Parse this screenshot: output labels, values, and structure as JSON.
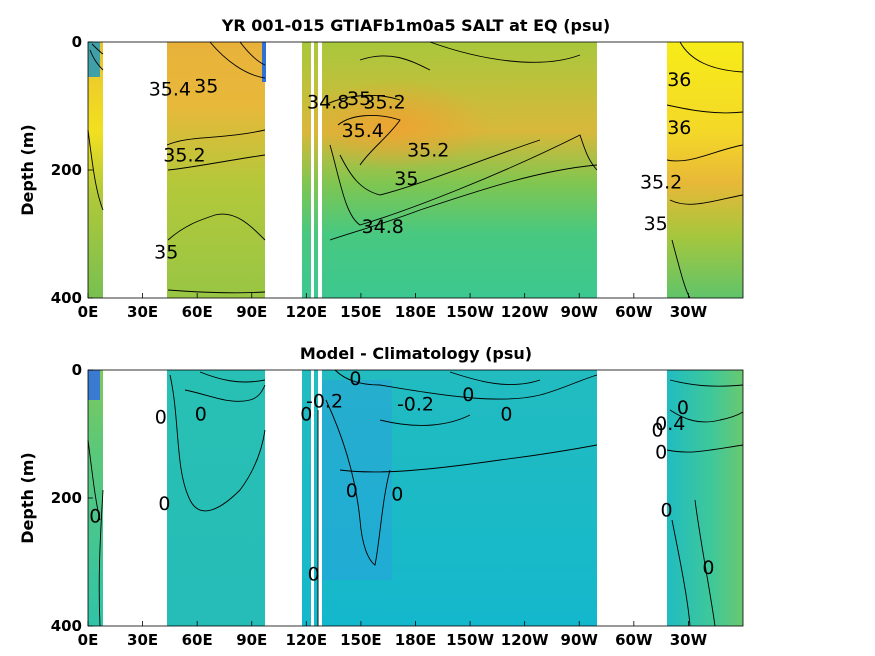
{
  "chart_data": [
    {
      "type": "heatmap",
      "title": "YR 001-015 GTIAFb1m0a5 SALT at EQ (psu)",
      "xlabel": "",
      "ylabel": "Depth (m)",
      "xticks": [
        "0E",
        "30E",
        "60E",
        "90E",
        "120E",
        "150E",
        "180E",
        "150W",
        "120W",
        "90W",
        "60W",
        "30W"
      ],
      "xtick_lon": [
        0,
        30,
        60,
        90,
        120,
        150,
        180,
        210,
        240,
        270,
        300,
        330
      ],
      "xlim": [
        0,
        360
      ],
      "yticks": [
        "0",
        "200",
        "400"
      ],
      "ytick_vals": [
        0,
        200,
        400
      ],
      "ylim": [
        0,
        400
      ],
      "y_reversed": true,
      "land_gaps_lon": [
        [
          7,
          42
        ],
        [
          97,
          118
        ],
        [
          122,
          124
        ],
        [
          125,
          127
        ],
        [
          273,
          303
        ]
      ],
      "contour_labels": [
        {
          "text": "35.4",
          "lon": 45,
          "depth": 75
        },
        {
          "text": "35",
          "lon": 65,
          "depth": 70
        },
        {
          "text": "35.2",
          "lon": 53,
          "depth": 178
        },
        {
          "text": "35",
          "lon": 43,
          "depth": 330
        },
        {
          "text": "34.8",
          "lon": 132,
          "depth": 95
        },
        {
          "text": "35",
          "lon": 149,
          "depth": 90
        },
        {
          "text": "35.2",
          "lon": 163,
          "depth": 95
        },
        {
          "text": "35.4",
          "lon": 151,
          "depth": 140
        },
        {
          "text": "35.2",
          "lon": 187,
          "depth": 170
        },
        {
          "text": "35",
          "lon": 175,
          "depth": 215
        },
        {
          "text": "34.8",
          "lon": 162,
          "depth": 290
        },
        {
          "text": "36",
          "lon": 325,
          "depth": 60
        },
        {
          "text": "36",
          "lon": 325,
          "depth": 135
        },
        {
          "text": "35.2",
          "lon": 315,
          "depth": 220
        },
        {
          "text": "35",
          "lon": 312,
          "depth": 285
        }
      ]
    },
    {
      "type": "heatmap",
      "title": "Model - Climatology (psu)",
      "xlabel": "",
      "ylabel": "Depth (m)",
      "xticks": [
        "0E",
        "30E",
        "60E",
        "90E",
        "120E",
        "150E",
        "180E",
        "150W",
        "120W",
        "90W",
        "60W",
        "30W"
      ],
      "xtick_lon": [
        0,
        30,
        60,
        90,
        120,
        150,
        180,
        210,
        240,
        270,
        300,
        330
      ],
      "xlim": [
        0,
        360
      ],
      "yticks": [
        "0",
        "200",
        "400"
      ],
      "ytick_vals": [
        0,
        200,
        400
      ],
      "ylim": [
        0,
        400
      ],
      "y_reversed": true,
      "land_gaps_lon": [
        [
          7,
          42
        ],
        [
          97,
          118
        ],
        [
          122,
          124
        ],
        [
          125,
          127
        ],
        [
          273,
          303
        ]
      ],
      "contour_labels": [
        {
          "text": "0",
          "lon": 40,
          "depth": 75
        },
        {
          "text": "0",
          "lon": 62,
          "depth": 70
        },
        {
          "text": "-0.2",
          "lon": 130,
          "depth": 50
        },
        {
          "text": "0",
          "lon": 120,
          "depth": 70
        },
        {
          "text": "0",
          "lon": 147,
          "depth": 15
        },
        {
          "text": "-0.2",
          "lon": 180,
          "depth": 55
        },
        {
          "text": "0",
          "lon": 209,
          "depth": 40
        },
        {
          "text": "0",
          "lon": 230,
          "depth": 70
        },
        {
          "text": "0",
          "lon": 145,
          "depth": 190
        },
        {
          "text": "0",
          "lon": 170,
          "depth": 195
        },
        {
          "text": "0",
          "lon": 42,
          "depth": 210
        },
        {
          "text": "0",
          "lon": 4,
          "depth": 230
        },
        {
          "text": "0",
          "lon": 124,
          "depth": 320
        },
        {
          "text": "0",
          "lon": 313,
          "depth": 95
        },
        {
          "text": "0",
          "lon": 327,
          "depth": 60
        },
        {
          "text": "0.4",
          "lon": 320,
          "depth": 85
        },
        {
          "text": "0",
          "lon": 315,
          "depth": 130
        },
        {
          "text": "0",
          "lon": 318,
          "depth": 220
        },
        {
          "text": "0",
          "lon": 341,
          "depth": 310
        }
      ]
    }
  ],
  "colors": {
    "top_yellow": "#f4e41c",
    "top_orange": "#f0b43a",
    "top_green": "#a8c83c",
    "top_teal": "#40c890",
    "bottom_cyan": "#10b8c8",
    "bottom_teal": "#3cc8a0",
    "contour": "#000000",
    "land": "#ffffff"
  }
}
